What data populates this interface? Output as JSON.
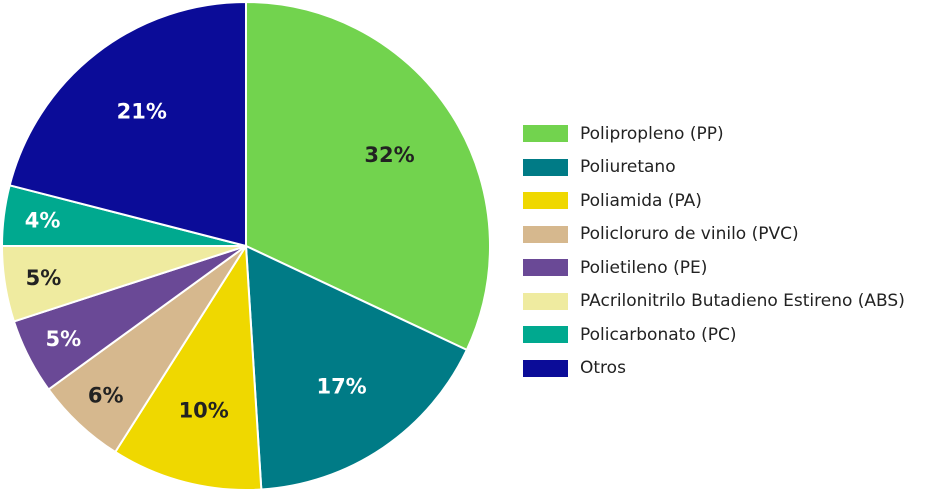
{
  "chart_data": {
    "type": "pie",
    "title": "",
    "start_angle": "top",
    "direction": "clockwise",
    "legend_position": "right",
    "slices": [
      {
        "name": "Polipropleno (PP)",
        "value": 32,
        "label": "32%",
        "color": "#72d34e",
        "label_color": "#222222"
      },
      {
        "name": "Poliuretano",
        "value": 17,
        "label": "17%",
        "color": "#007b86",
        "label_color": "#ffffff"
      },
      {
        "name": "Poliamida (PA)",
        "value": 10,
        "label": "10%",
        "color": "#efd800",
        "label_color": "#222222"
      },
      {
        "name": "Policloruro de vinilo (PVC)",
        "value": 6,
        "label": "6%",
        "color": "#d6b88e",
        "label_color": "#222222"
      },
      {
        "name": "Polietileno (PE)",
        "value": 5,
        "label": "5%",
        "color": "#6a4996",
        "label_color": "#ffffff"
      },
      {
        "name": "PAcrilonitrilo Butadieno Estireno (ABS)",
        "value": 5,
        "label": "5%",
        "color": "#efeba0",
        "label_color": "#222222"
      },
      {
        "name": "Policarbonato (PC)",
        "value": 4,
        "label": "4%",
        "color": "#00a98f",
        "label_color": "#ffffff"
      },
      {
        "name": "Otros",
        "value": 21,
        "label": "21%",
        "color": "#0b0c98",
        "label_color": "#ffffff"
      }
    ]
  }
}
